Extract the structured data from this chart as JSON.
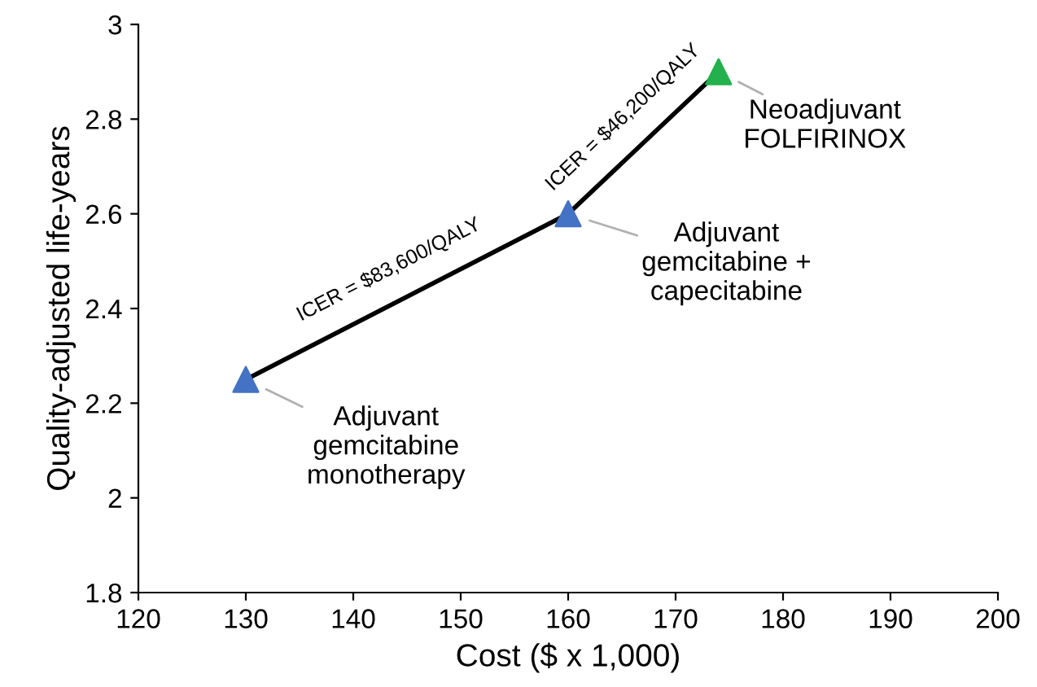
{
  "chart_data": {
    "type": "line",
    "xlabel": "Cost ($ x 1,000)",
    "ylabel": "Quality-adjusted life-years",
    "xlim": [
      120,
      200
    ],
    "xticks": [
      120,
      130,
      140,
      150,
      160,
      170,
      180,
      190,
      200
    ],
    "ylim": [
      1.8,
      3
    ],
    "yticks": [
      1.8,
      2,
      2.2,
      2.4,
      2.6,
      2.8,
      3
    ],
    "grid": false,
    "legend": false,
    "series": [
      {
        "color": "#000000",
        "x": [
          130,
          160,
          174
        ],
        "values": [
          2.25,
          2.6,
          2.9
        ],
        "marker": "none",
        "line_style": "solid"
      },
      {
        "type": "scatter",
        "x": [
          130,
          160,
          174
        ],
        "values": [
          2.25,
          2.6,
          2.9
        ],
        "colors": [
          "#4472c4",
          "#4472c4",
          "#22b14c"
        ],
        "marker": "triangle"
      }
    ],
    "annotations": [
      {
        "text": "Adjuvant\ngemcitabine\nmonotherapy",
        "x": 130,
        "y": 2.25
      },
      {
        "text": "Adjuvant\ngemcitabine +\ncapecitabine",
        "x": 160,
        "y": 2.6
      },
      {
        "text": "Neoadjuvant\nFOLFIRINOX",
        "x": 174,
        "y": 2.9
      },
      {
        "text": "ICER = $83,600/QALY",
        "x": 145,
        "y": 2.425
      },
      {
        "text": "ICER = $46,200/QALY",
        "x": 167,
        "y": 2.75
      }
    ]
  }
}
